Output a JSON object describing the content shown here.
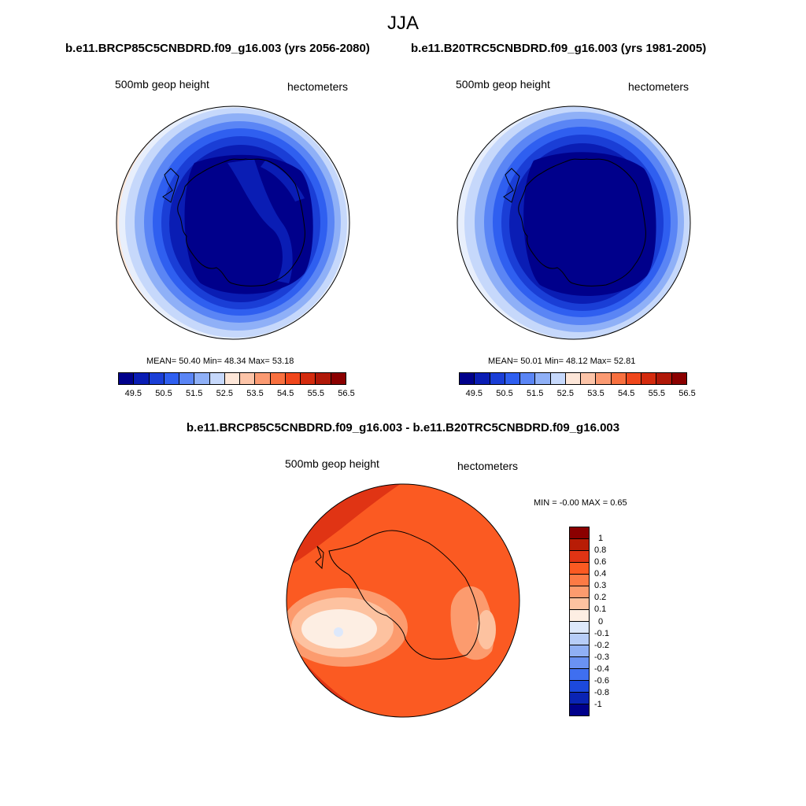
{
  "title": "JJA",
  "panels": [
    {
      "title": "b.e11.BRCP85C5CNBDRD.f09_g16.003 (yrs 2056-2080)",
      "left_label": "500mb geop height",
      "right_label": "hectometers",
      "stats_text": "MEAN=  50.40  Min=  48.34  Max=  53.18",
      "stats": {
        "mean": 50.4,
        "min": 48.34,
        "max": 53.18
      }
    },
    {
      "title": "b.e11.B20TRC5CNBDRD.f09_g16.003 (yrs 1981-2005)",
      "left_label": "500mb geop height",
      "right_label": "hectometers",
      "stats_text": "MEAN=  50.01  Min=  48.12  Max=  52.81",
      "stats": {
        "mean": 50.01,
        "min": 48.12,
        "max": 52.81
      }
    }
  ],
  "difference_panel": {
    "title": "b.e11.BRCP85C5CNBDRD.f09_g16.003 - b.e11.B20TRC5CNBDRD.f09_g16.003",
    "left_label": "500mb geop height",
    "right_label": "hectometers",
    "stats_text": "MIN =  -0.00 MAX =   0.65",
    "stats": {
      "min": -0.0,
      "max": 0.65
    }
  },
  "abs_colorbar": {
    "colors": [
      "#00008b",
      "#0a1db4",
      "#1a3ed6",
      "#2f5ff0",
      "#5a85f5",
      "#8fb0f7",
      "#c6d8fb",
      "#fde6d8",
      "#fcc4a8",
      "#fb9a72",
      "#f8703f",
      "#f0471c",
      "#d42b0e",
      "#b01808",
      "#8b0000"
    ],
    "tick_labels": [
      "49.5",
      "50.5",
      "51.5",
      "52.5",
      "53.5",
      "54.5",
      "55.5",
      "56.5"
    ]
  },
  "diff_colorbar": {
    "colors": [
      "#8b0000",
      "#b81c06",
      "#e03414",
      "#fb5a22",
      "#fc7a45",
      "#fc9b6e",
      "#fdc2a0",
      "#fdeee3",
      "#dde8fb",
      "#b7cdf8",
      "#90b0f5",
      "#6a92f2",
      "#3f6ff0",
      "#1c49dc",
      "#0a24b4",
      "#00008b"
    ],
    "tick_labels": [
      "1",
      "0.8",
      "0.6",
      "0.4",
      "0.3",
      "0.2",
      "0.1",
      "0",
      "-0.1",
      "-0.2",
      "-0.3",
      "-0.4",
      "-0.6",
      "-0.8",
      "-1"
    ]
  }
}
